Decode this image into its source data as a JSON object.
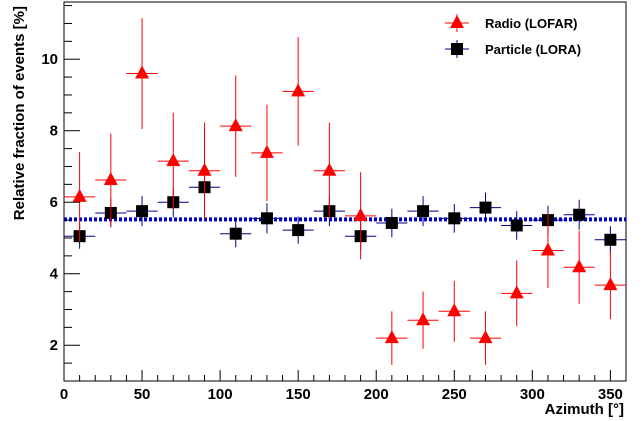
{
  "chart_data": {
    "type": "scatter",
    "title": "",
    "xlabel": "Azimuth [°]",
    "ylabel": "Relative fraction of events [%]",
    "xlim": [
      0,
      360
    ],
    "ylim": [
      1,
      11.6
    ],
    "xticks": [
      0,
      50,
      100,
      150,
      200,
      250,
      300,
      350
    ],
    "yticks": [
      2,
      4,
      6,
      8,
      10
    ],
    "grid": false,
    "legend_position": "top-right",
    "x_bin_half_width": 10,
    "series": [
      {
        "name": "Radio (LOFAR)",
        "marker": "triangle",
        "color": "#ff0000",
        "x": [
          10,
          30,
          50,
          70,
          90,
          110,
          130,
          150,
          170,
          190,
          210,
          230,
          250,
          270,
          290,
          310,
          330,
          350
        ],
        "y": [
          6.15,
          6.62,
          9.6,
          7.15,
          6.88,
          8.13,
          7.38,
          9.1,
          6.88,
          5.62,
          2.2,
          2.7,
          2.95,
          2.2,
          3.45,
          4.65,
          4.18,
          3.68
        ],
        "yerr": [
          1.25,
          1.3,
          1.55,
          1.35,
          1.35,
          1.42,
          1.35,
          1.52,
          1.35,
          1.22,
          0.75,
          0.8,
          0.85,
          0.75,
          0.92,
          1.05,
          1.02,
          0.95
        ]
      },
      {
        "name": "Particle (LORA)",
        "marker": "square",
        "color": "#000000",
        "x": [
          10,
          30,
          50,
          70,
          90,
          110,
          130,
          150,
          170,
          190,
          210,
          230,
          250,
          270,
          290,
          310,
          330,
          350
        ],
        "y": [
          5.05,
          5.7,
          5.75,
          6.0,
          6.42,
          5.12,
          5.55,
          5.22,
          5.75,
          5.05,
          5.42,
          5.75,
          5.55,
          5.85,
          5.35,
          5.5,
          5.65,
          4.95
        ],
        "yerr": [
          0.35,
          0.4,
          0.42,
          0.42,
          0.42,
          0.38,
          0.42,
          0.38,
          0.42,
          0.38,
          0.4,
          0.42,
          0.4,
          0.42,
          0.4,
          0.4,
          0.42,
          0.38
        ]
      }
    ],
    "reference_line": {
      "y": 5.52,
      "color": "#0000cc",
      "style": "dotted"
    }
  }
}
